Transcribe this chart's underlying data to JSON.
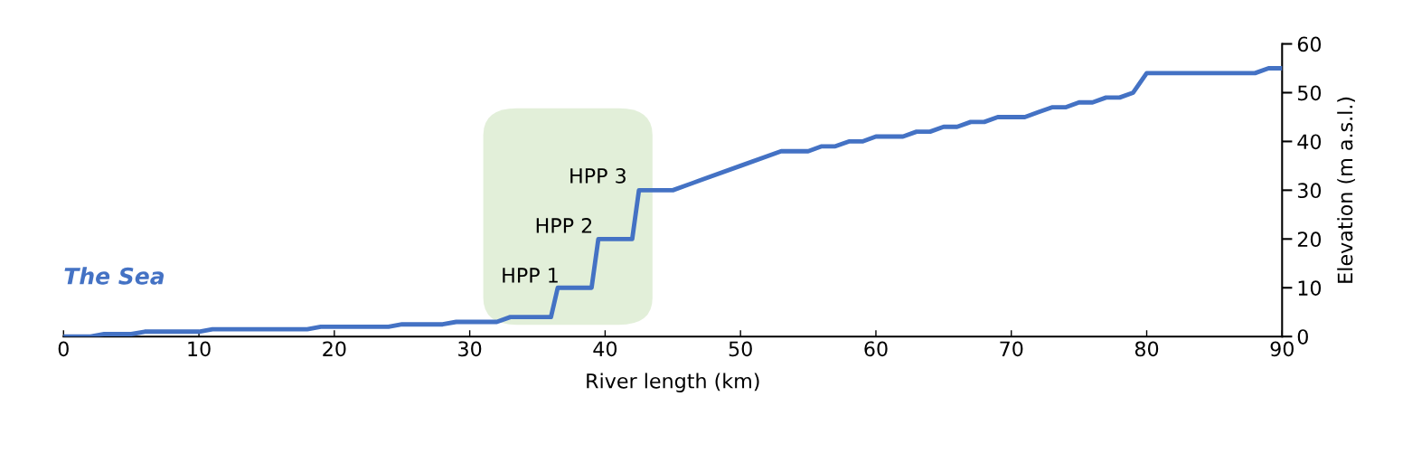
{
  "chart_data": {
    "type": "line",
    "xlabel": "River length (km)",
    "ylabel": "Elevation (m a.s.l.)",
    "xlim": [
      0,
      90
    ],
    "xticks": [
      0,
      10,
      20,
      30,
      40,
      50,
      60,
      70,
      80,
      90
    ],
    "ylim": [
      0,
      60
    ],
    "yticks": [
      0,
      10,
      20,
      30,
      40,
      50,
      60
    ],
    "grid": false,
    "legend": false,
    "marker": "none",
    "line_style": "solid",
    "series": [
      {
        "color": "#4472c4",
        "x": [
          0,
          2,
          3,
          5,
          6,
          10,
          11,
          18,
          19,
          24,
          25,
          28,
          29,
          32,
          33,
          36,
          36.5,
          39,
          39.5,
          42,
          42.5,
          45,
          47,
          50,
          53,
          55,
          56,
          57,
          58,
          59,
          60,
          62,
          63,
          64,
          65,
          66,
          67,
          68,
          69,
          71,
          72,
          73,
          74,
          75,
          76,
          77,
          78,
          79,
          80,
          88,
          89,
          90
        ],
        "values": [
          0,
          0,
          0.5,
          0.5,
          1,
          1,
          1.5,
          1.5,
          2,
          2,
          2.5,
          2.5,
          3,
          3,
          4,
          4,
          10,
          10,
          20,
          20,
          30,
          30,
          32,
          35,
          38,
          38,
          39,
          39,
          40,
          40,
          41,
          41,
          42,
          42,
          43,
          43,
          44,
          44,
          45,
          45,
          46,
          47,
          47,
          48,
          48,
          49,
          49,
          50,
          54,
          54,
          55,
          55
        ]
      }
    ],
    "bands": [
      {
        "axis": "x",
        "from": 31,
        "to": 43.5,
        "color": "#c5e0b4"
      }
    ],
    "annotations": [
      "The Sea",
      "HPP 1",
      "HPP 2",
      "HPP 3"
    ]
  }
}
